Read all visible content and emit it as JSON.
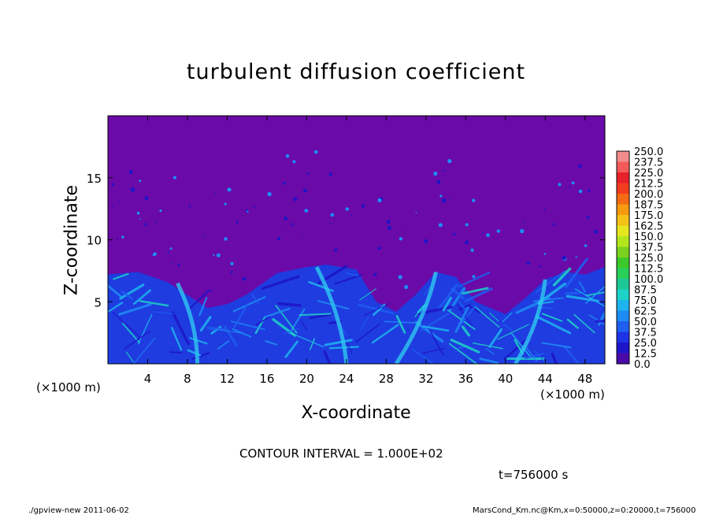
{
  "chart_data": {
    "type": "heatmap",
    "title": "turbulent diffusion coefficient",
    "xlabel": "X-coordinate",
    "ylabel": "Z-coordinate",
    "x_unit_left": "(×1000 m)",
    "x_unit_right": "(×1000 m)",
    "xlim": [
      0,
      50
    ],
    "ylim": [
      0,
      20
    ],
    "xticks": [
      4,
      8,
      12,
      16,
      20,
      24,
      28,
      32,
      36,
      40,
      44,
      48
    ],
    "yticks": [
      5,
      10,
      15
    ],
    "colorbar": {
      "levels": [
        "250.0",
        "237.5",
        "225.0",
        "212.5",
        "200.0",
        "187.5",
        "175.0",
        "162.5",
        "150.0",
        "137.5",
        "125.0",
        "112.5",
        "100.0",
        "87.5",
        "75.0",
        "62.5",
        "50.0",
        "37.5",
        "25.0",
        "12.5",
        "0.0"
      ],
      "colors": [
        "#f28c8c",
        "#f45a5a",
        "#e8202a",
        "#f23c1e",
        "#f56a14",
        "#f79a10",
        "#f5c218",
        "#e6e620",
        "#b4e61e",
        "#7ad21e",
        "#3cc828",
        "#28d05a",
        "#1ec896",
        "#1ed2c8",
        "#1eb4f0",
        "#1e8cf5",
        "#1e5ff0",
        "#1e32e6",
        "#1e14c8",
        "#4a0aa8"
      ]
    },
    "boundary_layer_top_km": [
      [
        0,
        7.2
      ],
      [
        3,
        7.4
      ],
      [
        6,
        6.6
      ],
      [
        10,
        4.5
      ],
      [
        12,
        4.8
      ],
      [
        14,
        5.6
      ],
      [
        17,
        7.3
      ],
      [
        20,
        7.8
      ],
      [
        22,
        8.0
      ],
      [
        25,
        7.6
      ],
      [
        27,
        5.0
      ],
      [
        29,
        4.2
      ],
      [
        31,
        5.6
      ],
      [
        33,
        7.4
      ],
      [
        35,
        7.0
      ],
      [
        37,
        5.0
      ],
      [
        40,
        4.0
      ],
      [
        42,
        5.3
      ],
      [
        44,
        6.8
      ],
      [
        46,
        7.4
      ],
      [
        48,
        7.2
      ],
      [
        50,
        7.8
      ]
    ],
    "contour_interval": "CONTOUR INTERVAL = 1.000E+02",
    "time": "t=756000 s"
  },
  "footer": {
    "left": "./gpview-new  2011-06-02",
    "right": "MarsCond_Km.nc@Km,x=0:50000,z=0:20000,t=756000"
  }
}
